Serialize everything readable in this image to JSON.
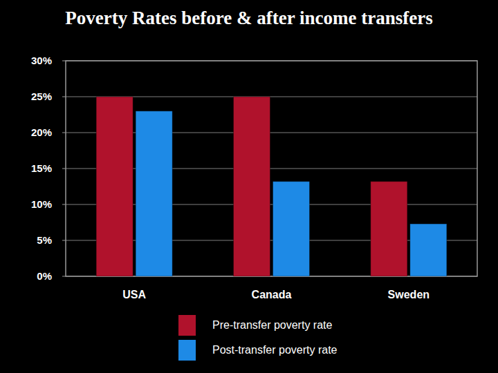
{
  "chart_data": {
    "type": "bar",
    "title": "Poverty Rates before & after income transfers",
    "categories": [
      "USA",
      "Canada",
      "Sweden"
    ],
    "series": [
      {
        "name": "Pre-transfer poverty rate",
        "color": "#b0122c",
        "values": [
          25,
          25,
          13.2
        ]
      },
      {
        "name": "Post-transfer poverty rate",
        "color": "#1e8ae6",
        "values": [
          23,
          13.2,
          7.3
        ]
      }
    ],
    "ylim": [
      0,
      30
    ],
    "yticks": [
      {
        "value": 0,
        "label": "0%"
      },
      {
        "value": 5,
        "label": "5%"
      },
      {
        "value": 10,
        "label": "10%"
      },
      {
        "value": 15,
        "label": "15%"
      },
      {
        "value": 20,
        "label": "20%"
      },
      {
        "value": 25,
        "label": "25%"
      },
      {
        "value": 30,
        "label": "30%"
      }
    ],
    "grid": true,
    "legend": "bottom"
  }
}
